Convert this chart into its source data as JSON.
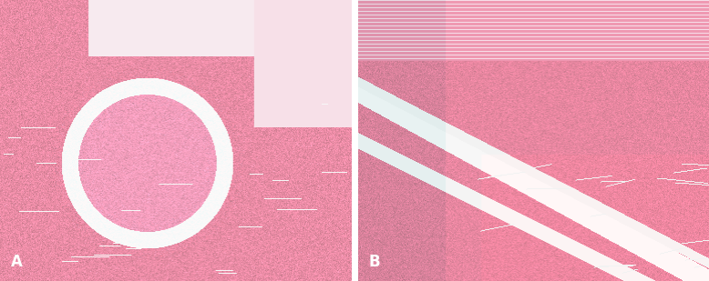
{
  "label_A": "A",
  "label_B": "B",
  "label_color": "white",
  "label_fontsize": 12,
  "label_fontweight": "bold",
  "background_color": "white",
  "fig_width": 7.78,
  "fig_height": 3.09,
  "dpi": 100
}
